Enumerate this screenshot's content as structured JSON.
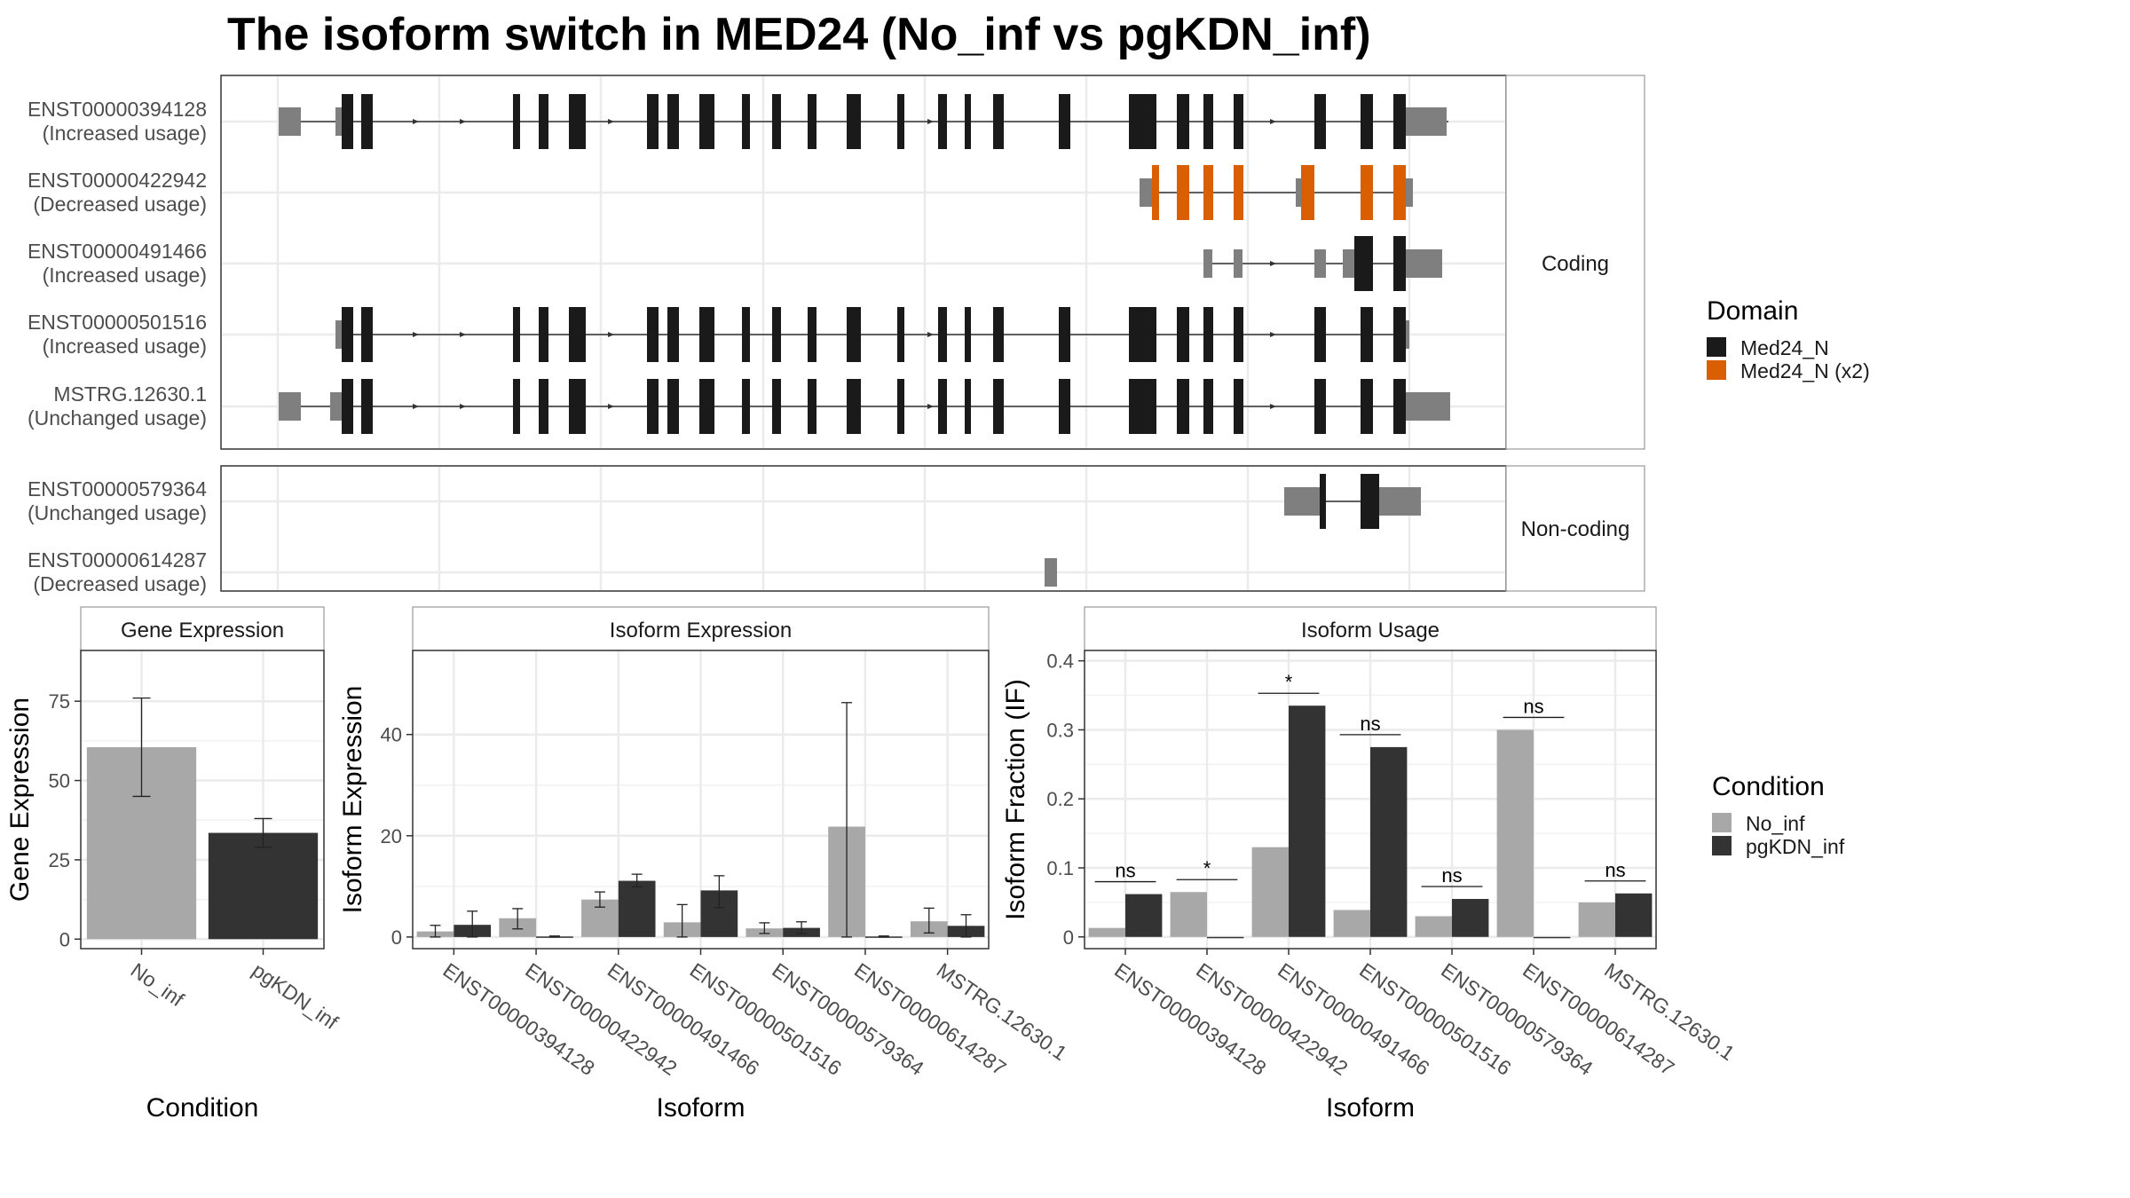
{
  "title": "The isoform switch in MED24 (No_inf vs pgKDN_inf)",
  "colors": {
    "domain_main": "#1a1a1a",
    "domain_x2": "#d95f02",
    "utr": "#7f7f7f",
    "no_inf": "#a8a8a8",
    "pgkdn_inf": "#333333",
    "grid": "#ebebeb",
    "panel_border": "#333333",
    "strip_border": "#999999"
  },
  "structure": {
    "facets": [
      "Coding",
      "Non-coding"
    ],
    "isoforms": [
      {
        "id": "ENST00000394128",
        "status": "(Increased usage)",
        "facet": "Coding"
      },
      {
        "id": "ENST00000422942",
        "status": "(Decreased usage)",
        "facet": "Coding"
      },
      {
        "id": "ENST00000491466",
        "status": "(Increased usage)",
        "facet": "Coding"
      },
      {
        "id": "ENST00000501516",
        "status": "(Increased usage)",
        "facet": "Coding"
      },
      {
        "id": "MSTRG.12630.1",
        "status": "(Unchanged usage)",
        "facet": "Coding"
      },
      {
        "id": "ENST00000579364",
        "status": "(Unchanged usage)",
        "facet": "Non-coding"
      },
      {
        "id": "ENST00000614287",
        "status": "(Decreased usage)",
        "facet": "Non-coding"
      }
    ],
    "legend": {
      "title": "Domain",
      "entries": [
        {
          "label": "Med24_N",
          "color": "#1a1a1a"
        },
        {
          "label": "Med24_N (x2)",
          "color": "#d95f02"
        }
      ]
    }
  },
  "condition_legend": {
    "title": "Condition",
    "entries": [
      {
        "label": "No_inf",
        "color": "#a8a8a8"
      },
      {
        "label": "pgKDN_inf",
        "color": "#333333"
      }
    ]
  },
  "chart_data": [
    {
      "type": "bar",
      "title": "Gene Expression",
      "xlabel": "Condition",
      "ylabel": "Gene Expression",
      "categories": [
        "No_inf",
        "pgKDN_inf"
      ],
      "values": [
        60.5,
        33.5
      ],
      "error_low": [
        45,
        29
      ],
      "error_high": [
        76,
        38
      ],
      "yticks": [
        0,
        25,
        50,
        75
      ],
      "ylim": [
        -3,
        91
      ]
    },
    {
      "type": "bar",
      "title": "Isoform Expression",
      "xlabel": "Isoform",
      "ylabel": "Isoform Expression",
      "categories": [
        "ENST00000394128",
        "ENST00000422942",
        "ENST00000491466",
        "ENST00000501516",
        "ENST00000579364",
        "ENST00000614287",
        "MSTRG.12630.1"
      ],
      "series": [
        {
          "name": "No_inf",
          "values": [
            1.1,
            3.7,
            7.4,
            2.9,
            1.7,
            21.8,
            3.1
          ],
          "error_low": [
            0,
            1.6,
            5.9,
            0,
            0.7,
            0,
            0.8
          ],
          "error_high": [
            2.3,
            5.6,
            8.9,
            6.4,
            2.8,
            46.3,
            5.7
          ]
        },
        {
          "name": "pgKDN_inf",
          "values": [
            2.4,
            0.1,
            11.1,
            9.2,
            1.8,
            0.1,
            2.2
          ],
          "error_low": [
            0,
            0,
            9.9,
            5.8,
            0.7,
            0,
            0
          ],
          "error_high": [
            5.1,
            0.2,
            12.4,
            12.1,
            3.0,
            0.2,
            4.4
          ]
        }
      ],
      "yticks": [
        0,
        20,
        40
      ],
      "ylim": [
        -2.3,
        56.6
      ]
    },
    {
      "type": "bar",
      "title": "Isoform Usage",
      "xlabel": "Isoform",
      "ylabel": "Isoform Fraction (IF)",
      "categories": [
        "ENST00000394128",
        "ENST00000422942",
        "ENST00000491466",
        "ENST00000501516",
        "ENST00000579364",
        "ENST00000614287",
        "MSTRG.12630.1"
      ],
      "series": [
        {
          "name": "No_inf",
          "values": [
            0.013,
            0.065,
            0.13,
            0.039,
            0.03,
            0.3,
            0.05
          ]
        },
        {
          "name": "pgKDN_inf",
          "values": [
            0.062,
            0.0,
            0.335,
            0.275,
            0.055,
            0.0,
            0.063
          ]
        }
      ],
      "significance": [
        "ns",
        "*",
        "*",
        "ns",
        "ns",
        "ns",
        "ns"
      ],
      "yticks": [
        0.0,
        0.1,
        0.2,
        0.3,
        0.4
      ],
      "ylim": [
        -0.017,
        0.415
      ]
    }
  ]
}
